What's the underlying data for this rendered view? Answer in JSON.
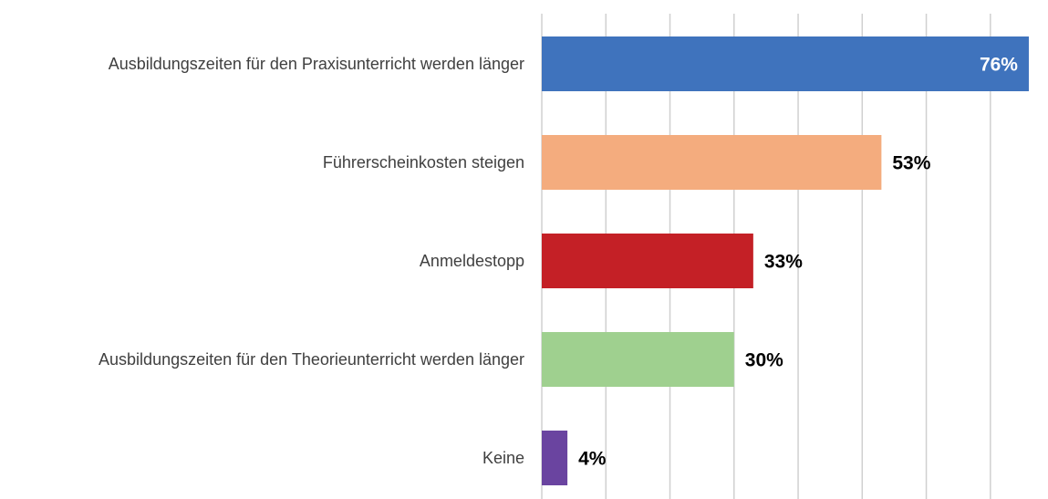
{
  "chart_data": {
    "type": "bar",
    "orientation": "horizontal",
    "categories": [
      "Ausbildungszeiten für den Praxisunterricht werden länger",
      "Führerscheinkosten steigen",
      "Anmeldestopp",
      "Ausbildungszeiten für den Theorieunterricht werden länger",
      "Keine"
    ],
    "values": [
      76,
      53,
      33,
      30,
      4
    ],
    "value_labels": [
      "76%",
      "53%",
      "33%",
      "30%",
      "4%"
    ],
    "colors": [
      "#3f73bd",
      "#f4ac7e",
      "#c42026",
      "#9fd08f",
      "#6a44a0"
    ],
    "xlim": [
      0,
      77
    ],
    "xticks": [
      0,
      10,
      20,
      30,
      40,
      50,
      60,
      70
    ],
    "grid": true
  }
}
